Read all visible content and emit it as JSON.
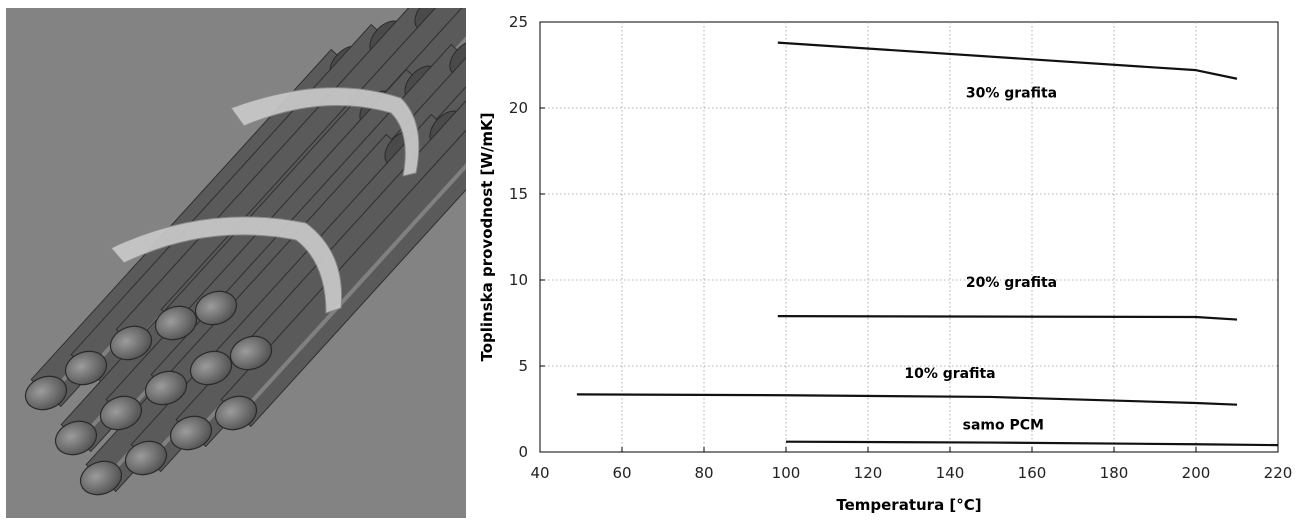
{
  "colors": {
    "background": "#ffffff",
    "line": "#111111",
    "grid": "#9a9a9a",
    "photo_background": "#7d7d7d"
  },
  "photo": {
    "icon": "bundle-of-metal-rods-photo"
  },
  "chart_data": {
    "type": "line",
    "title": "",
    "xlabel": "Temperatura [°C]",
    "ylabel": "Toplinska provodnost [W/mK]",
    "xlim": [
      40,
      220
    ],
    "ylim": [
      0,
      25
    ],
    "xticks": [
      40,
      60,
      80,
      100,
      120,
      140,
      160,
      180,
      200,
      220
    ],
    "yticks": [
      0,
      5,
      10,
      15,
      20,
      25
    ],
    "grid": true,
    "series": [
      {
        "name": "30% grafita",
        "x": [
          98,
          200,
          210
        ],
        "y": [
          23.8,
          22.2,
          21.7
        ]
      },
      {
        "name": "20% grafita",
        "x": [
          98,
          200,
          210
        ],
        "y": [
          7.9,
          7.85,
          7.7
        ]
      },
      {
        "name": "10% grafita",
        "x": [
          49,
          100,
          150,
          200,
          210
        ],
        "y": [
          3.35,
          3.3,
          3.2,
          2.85,
          2.75
        ]
      },
      {
        "name": "samo PCM",
        "x": [
          100,
          150,
          200,
          220
        ],
        "y": [
          0.6,
          0.55,
          0.45,
          0.4
        ]
      }
    ]
  }
}
